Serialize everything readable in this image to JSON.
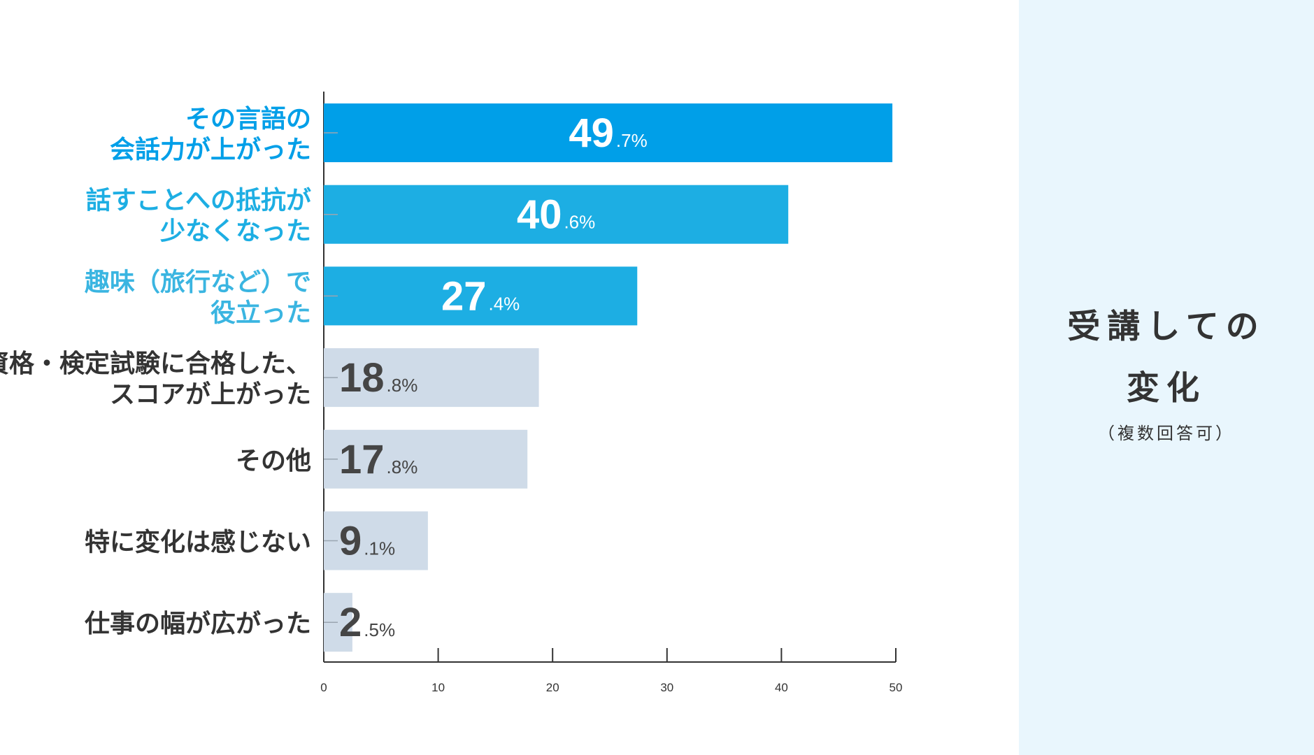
{
  "chart_data": {
    "type": "bar",
    "orientation": "horizontal",
    "categories": [
      [
        "その言語の",
        "会話力が上がった"
      ],
      [
        "話すことへの抵抗が",
        "少なくなった"
      ],
      [
        "趣味（旅行など）で",
        "役立った"
      ],
      [
        "資格・検定試験に合格した、",
        "スコアが上がった"
      ],
      [
        "その他"
      ],
      [
        "特に変化は感じない"
      ],
      [
        "仕事の幅が広がった"
      ]
    ],
    "values": [
      49.7,
      40.6,
      27.4,
      18.8,
      17.8,
      9.1,
      2.5
    ],
    "value_labels": [
      {
        "int": "49",
        "frac": ".7%"
      },
      {
        "int": "40",
        "frac": ".6%"
      },
      {
        "int": "27",
        "frac": ".4%"
      },
      {
        "int": "18",
        "frac": ".8%"
      },
      {
        "int": "17",
        "frac": ".8%"
      },
      {
        "int": "9",
        "frac": ".1%"
      },
      {
        "int": "2",
        "frac": ".5%"
      }
    ],
    "xlim": [
      0,
      50
    ],
    "xticks": [
      0,
      10,
      20,
      30,
      40,
      50
    ],
    "title": "",
    "xlabel": "",
    "ylabel": "",
    "grid": false,
    "colors": {
      "bars": [
        "#009fe8",
        "#1daee3",
        "#1daee3",
        "#cfdbe8",
        "#cfdbe8",
        "#cfdbe8",
        "#cfdbe8"
      ],
      "labels": [
        "#009fe8",
        "#1daee3",
        "#3ab5e1",
        "#333333",
        "#333333",
        "#333333",
        "#333333"
      ],
      "value_text": [
        "#ffffff",
        "#ffffff",
        "#ffffff",
        "#454545",
        "#454545",
        "#454545",
        "#454545"
      ],
      "axis": "#333333"
    }
  },
  "side_panel": {
    "title_line1": "受講しての",
    "title_line2": "変化",
    "note": "（複数回答可）",
    "background": "#e9f6fd"
  }
}
